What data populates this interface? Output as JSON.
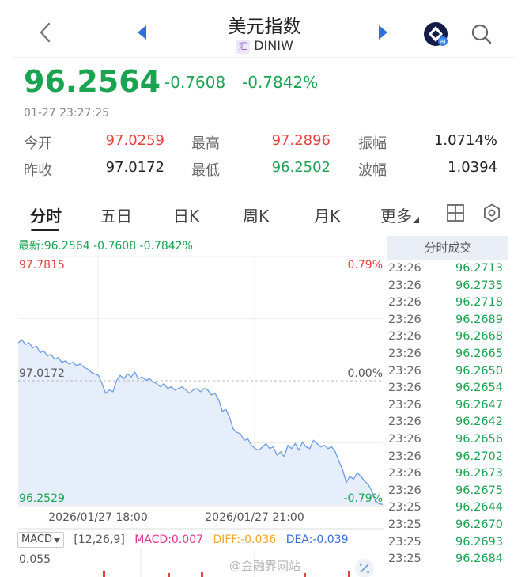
{
  "header": {
    "title": "美元指数",
    "symbol_badge": "汇",
    "symbol": "DINIW",
    "icons": [
      "chevron-left-icon",
      "triangle-left-icon",
      "triangle-right-icon",
      "ai-assistant-icon",
      "search-icon"
    ]
  },
  "quote": {
    "last": "96.2564",
    "change": "-0.7608",
    "change_pct": "-0.7842%",
    "timestamp": "01-27 23:27:25",
    "stats": [
      {
        "label": "今开",
        "value": "97.0259"
      },
      {
        "label": "最高",
        "value": "97.2896"
      },
      {
        "label": "振幅",
        "value": "1.0714%"
      },
      {
        "label": "昨收",
        "value": "97.0172"
      },
      {
        "label": "最低",
        "value": "96.2502"
      },
      {
        "label": "波幅",
        "value": "1.0394"
      }
    ]
  },
  "tabs": {
    "items": [
      "分时",
      "五日",
      "日K",
      "周K",
      "月K",
      "更多"
    ],
    "active": "分时",
    "icons": [
      "layout-grid-icon",
      "settings-icon"
    ]
  },
  "chart": {
    "latest_line": "最新:96.2564  -0.7608  -0.7842%",
    "max_label": "97.7815",
    "max_pct": "0.79%",
    "prev_close_label": "97.0172",
    "zero_pct": "0.00%",
    "min_label": "96.2529",
    "min_pct": "-0.79%",
    "time_labels": [
      "2026/01/27 18:00",
      "2026/01/27 21:00"
    ]
  },
  "chart_data": {
    "type": "line",
    "ylim": [
      96.2529,
      97.7815
    ],
    "baseline": 97.0172,
    "series": [
      {
        "values": [
          97.25,
          97.27,
          97.24,
          97.25,
          97.22,
          97.23,
          97.19,
          97.2,
          97.17,
          97.18,
          97.15,
          97.16,
          97.13,
          97.14,
          97.12,
          97.13,
          97.11,
          97.12,
          97.1,
          97.09,
          97.07,
          97.06,
          97.05,
          97.0,
          96.94,
          96.96,
          96.95,
          97.02,
          97.05,
          97.03,
          97.06,
          97.04,
          97.07,
          97.03,
          97.04,
          97.02,
          97.03,
          97.01,
          97.0,
          96.98,
          97.0,
          96.97,
          96.98,
          96.96,
          96.97,
          96.98,
          96.96,
          96.94,
          96.96,
          96.97,
          96.95,
          96.97,
          96.96,
          96.93,
          96.94,
          96.9,
          96.83,
          96.84,
          96.79,
          96.72,
          96.7,
          96.69,
          96.65,
          96.66,
          96.62,
          96.6,
          96.59,
          96.61,
          96.63,
          96.6,
          96.61,
          96.56,
          96.58,
          96.55,
          96.62,
          96.6,
          96.63,
          96.59,
          96.64,
          96.61,
          96.6,
          96.65,
          96.63,
          96.61,
          96.62,
          96.6,
          96.61,
          96.58,
          96.52,
          96.47,
          96.39,
          96.43,
          96.41,
          96.45,
          96.43,
          96.4,
          96.38,
          96.34,
          96.28,
          96.26,
          96.2564
        ]
      }
    ]
  },
  "trades": {
    "header": "分时成交",
    "rows": [
      {
        "time": "23:26",
        "price": "96.2713"
      },
      {
        "time": "23:26",
        "price": "96.2735"
      },
      {
        "time": "23:26",
        "price": "96.2718"
      },
      {
        "time": "23:26",
        "price": "96.2689"
      },
      {
        "time": "23:26",
        "price": "96.2668"
      },
      {
        "time": "23:26",
        "price": "96.2665"
      },
      {
        "time": "23:26",
        "price": "96.2650"
      },
      {
        "time": "23:26",
        "price": "96.2654"
      },
      {
        "time": "23:26",
        "price": "96.2647"
      },
      {
        "time": "23:26",
        "price": "96.2642"
      },
      {
        "time": "23:26",
        "price": "96.2656"
      },
      {
        "time": "23:26",
        "price": "96.2702"
      },
      {
        "time": "23:26",
        "price": "96.2673"
      },
      {
        "time": "23:26",
        "price": "96.2675"
      },
      {
        "time": "23:25",
        "price": "96.2644"
      },
      {
        "time": "23:25",
        "price": "96.2670"
      },
      {
        "time": "23:25",
        "price": "96.2693"
      },
      {
        "time": "23:25",
        "price": "96.2684"
      }
    ]
  },
  "macd": {
    "selector": "MACD",
    "params": "[12,26,9]",
    "macd": "MACD:0.007",
    "diff": "DIFF:-0.036",
    "dea": "DEA:-0.039",
    "axis_top": "0.055",
    "colors": {
      "macd": "#e0358f",
      "diff": "#f5a623",
      "dea": "#3a6fd8"
    }
  },
  "watermark": "@金融界网站",
  "colors": {
    "up": "#e8423f",
    "down": "#1aa351",
    "line": "#6c9ce8",
    "fill": "#e4ecfb"
  }
}
